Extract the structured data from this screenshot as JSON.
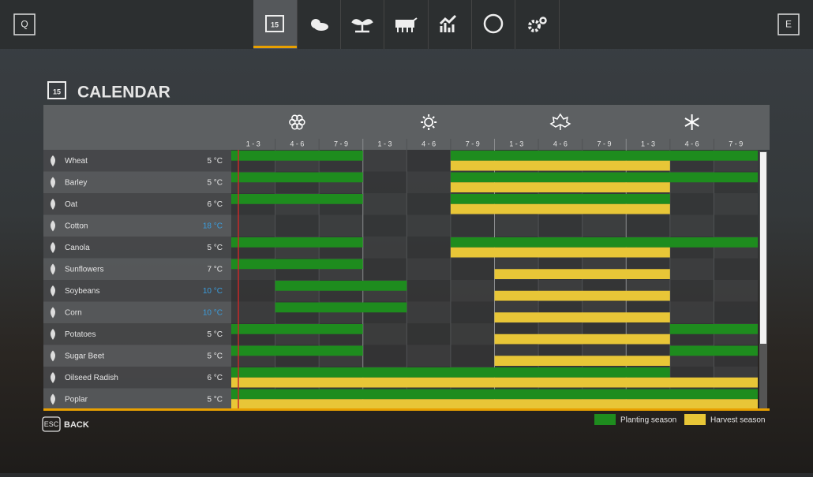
{
  "nav": {
    "left_key": "Q",
    "right_key": "E",
    "calendar_day": "15"
  },
  "header": {
    "title": "CALENDAR"
  },
  "calendar": {
    "periods": [
      "1 - 3",
      "4 - 6",
      "7 - 9",
      "1 - 3",
      "4 - 6",
      "7 - 9",
      "1 - 3",
      "4 - 6",
      "7 - 9",
      "1 - 3",
      "4 - 6",
      "7 - 9"
    ],
    "crops": [
      {
        "name": "Wheat",
        "temperature": "5 °C",
        "temperature_color": "#e6e6e6",
        "planting": [
          [
            0,
            2
          ],
          [
            5,
            11
          ]
        ],
        "harvest": [
          [
            5,
            9
          ]
        ]
      },
      {
        "name": "Barley",
        "temperature": "5 °C",
        "temperature_color": "#e6e6e6",
        "planting": [
          [
            0,
            2
          ],
          [
            5,
            11
          ]
        ],
        "harvest": [
          [
            5,
            9
          ]
        ]
      },
      {
        "name": "Oat",
        "temperature": "6 °C",
        "temperature_color": "#e6e6e6",
        "planting": [
          [
            0,
            2
          ],
          [
            5,
            9
          ]
        ],
        "harvest": [
          [
            5,
            9
          ]
        ]
      },
      {
        "name": "Cotton",
        "temperature": "18 °C",
        "temperature_color": "#3b9ddd",
        "planting": [],
        "harvest": []
      },
      {
        "name": "Canola",
        "temperature": "5 °C",
        "temperature_color": "#e6e6e6",
        "planting": [
          [
            0,
            2
          ],
          [
            5,
            11
          ]
        ],
        "harvest": [
          [
            5,
            9
          ]
        ]
      },
      {
        "name": "Sunflowers",
        "temperature": "7 °C",
        "temperature_color": "#e6e6e6",
        "planting": [
          [
            0,
            2
          ]
        ],
        "harvest": [
          [
            6,
            9
          ]
        ]
      },
      {
        "name": "Soybeans",
        "temperature": "10 °C",
        "temperature_color": "#3b9ddd",
        "planting": [
          [
            1,
            3
          ]
        ],
        "harvest": [
          [
            6,
            9
          ]
        ]
      },
      {
        "name": "Corn",
        "temperature": "10 °C",
        "temperature_color": "#3b9ddd",
        "planting": [
          [
            1,
            3
          ]
        ],
        "harvest": [
          [
            6,
            9
          ]
        ]
      },
      {
        "name": "Potatoes",
        "temperature": "5 °C",
        "temperature_color": "#e6e6e6",
        "planting": [
          [
            0,
            2
          ],
          [
            10,
            11
          ]
        ],
        "harvest": [
          [
            6,
            9
          ]
        ]
      },
      {
        "name": "Sugar Beet",
        "temperature": "5 °C",
        "temperature_color": "#e6e6e6",
        "planting": [
          [
            0,
            2
          ],
          [
            10,
            11
          ]
        ],
        "harvest": [
          [
            6,
            9
          ]
        ]
      },
      {
        "name": "Oilseed Radish",
        "temperature": "6 °C",
        "temperature_color": "#e6e6e6",
        "planting": [
          [
            0,
            9
          ]
        ],
        "harvest": [
          [
            0,
            11
          ]
        ]
      },
      {
        "name": "Poplar",
        "temperature": "5 °C",
        "temperature_color": "#e6e6e6",
        "planting": [
          [
            0,
            11
          ]
        ],
        "harvest": [
          [
            0,
            11
          ]
        ]
      }
    ]
  },
  "legend": {
    "planting": {
      "label": "Planting season",
      "color": "#1e8c1e"
    },
    "harvest": {
      "label": "Harvest season",
      "color": "#e8c637"
    }
  },
  "footer": {
    "key": "ESC",
    "label": "BACK"
  }
}
